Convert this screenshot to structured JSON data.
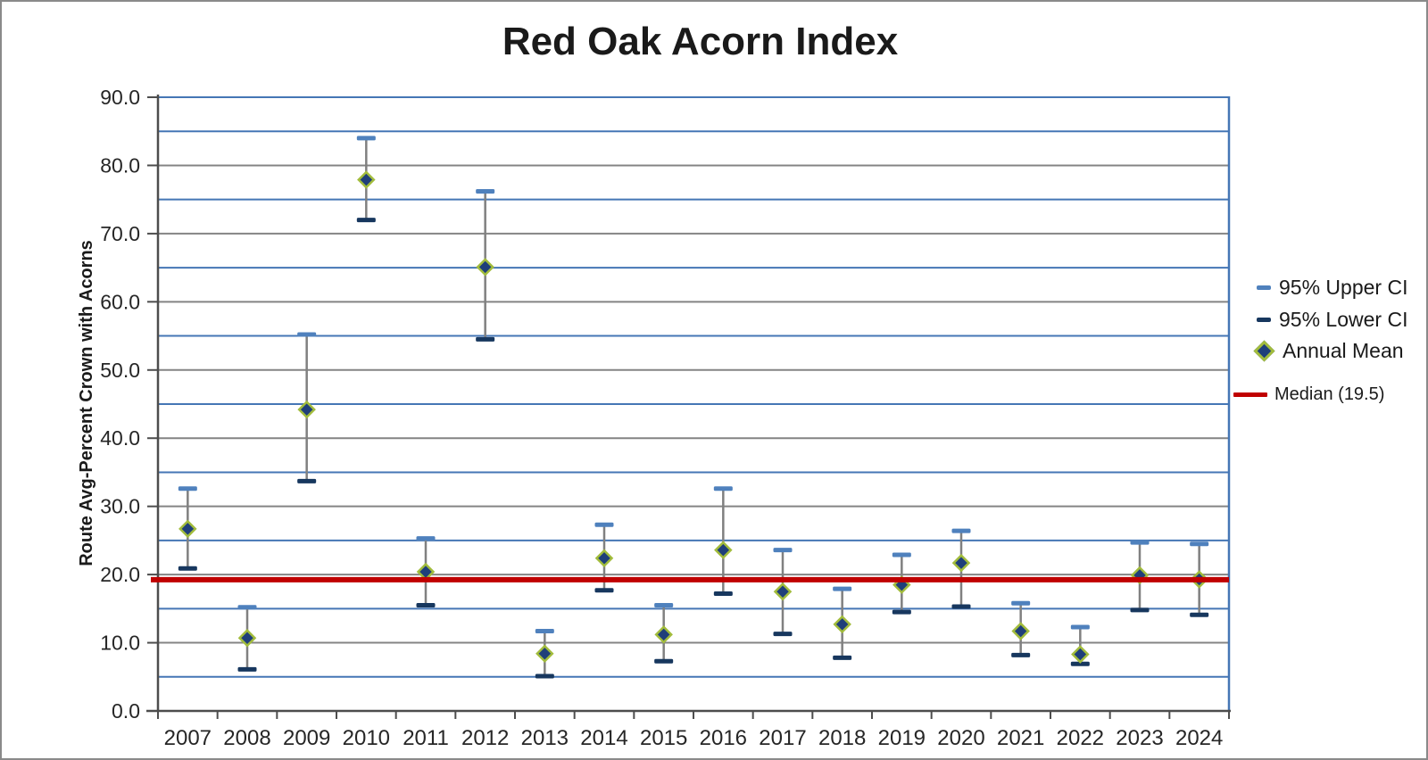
{
  "window": {
    "background": "#ffffff",
    "border_color": "#8a8a8a"
  },
  "chart_data": {
    "type": "scatter",
    "title": "Red Oak Acorn Index",
    "xlabel": "",
    "ylabel": "Route Avg-Percent Crown with Acorns",
    "ylim": [
      0,
      90
    ],
    "ytick_step": 10,
    "minor_gridline_step": 5,
    "grid": true,
    "legend_position": "right",
    "ytick_labels": [
      "0.0",
      "10.0",
      "20.0",
      "30.0",
      "40.0",
      "50.0",
      "60.0",
      "70.0",
      "80.0",
      "90.0"
    ],
    "categories": [
      "2007",
      "2008",
      "2009",
      "2010",
      "2011",
      "2012",
      "2013",
      "2014",
      "2015",
      "2016",
      "2017",
      "2018",
      "2019",
      "2020",
      "2021",
      "2022",
      "2023",
      "2024"
    ],
    "series": [
      {
        "name": "95% Upper CI",
        "marker": "dash",
        "color": "#4F81BD",
        "values": [
          32.6,
          15.2,
          55.2,
          84.0,
          25.3,
          76.2,
          11.7,
          27.3,
          15.5,
          32.6,
          23.6,
          17.9,
          22.9,
          26.4,
          15.8,
          12.3,
          24.7,
          24.5
        ]
      },
      {
        "name": "95% Lower CI",
        "marker": "dash",
        "color": "#17375E",
        "values": [
          20.9,
          6.1,
          33.7,
          72.0,
          15.5,
          54.5,
          5.1,
          17.7,
          7.3,
          17.2,
          11.3,
          7.8,
          14.5,
          15.3,
          8.2,
          6.9,
          14.8,
          14.1
        ]
      },
      {
        "name": "Annual Mean",
        "marker": "diamond",
        "fill": "#1F3F7A",
        "border": "#A2BC3C",
        "values": [
          26.7,
          10.7,
          44.2,
          77.9,
          20.4,
          65.1,
          8.4,
          22.4,
          11.2,
          23.6,
          17.5,
          12.7,
          18.5,
          21.7,
          11.7,
          8.3,
          19.9,
          19.3
        ]
      }
    ],
    "median_line": {
      "label": "Median (19.5)",
      "value": 19.5,
      "color": "#C00000"
    },
    "colors": {
      "minor_grid": "#4576B5",
      "major_grid": "#848484",
      "axis": "#4D4D4D",
      "error_bar": "#808080",
      "text": "#262626"
    }
  }
}
